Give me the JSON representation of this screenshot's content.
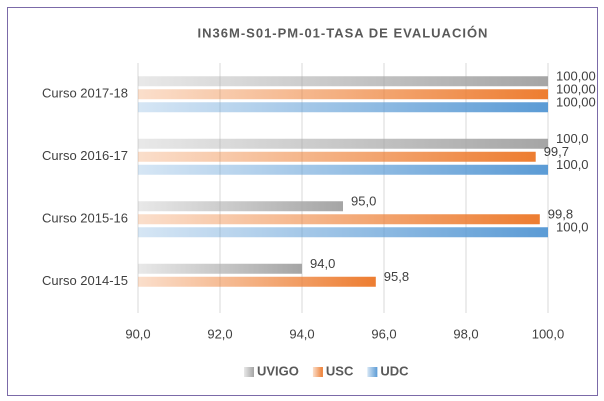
{
  "chart_data": {
    "type": "hbar",
    "title": "IN36M-S01-PM-01-TASA DE EVALUACIÓN",
    "categories": [
      "Curso 2014-15",
      "Curso 2015-16",
      "Curso 2016-17",
      "Curso 2017-18"
    ],
    "series": [
      {
        "name": "UVIGO",
        "color": "#a5a5a5",
        "values": [
          94.0,
          95.0,
          100.0,
          100.0
        ],
        "value_labels": [
          "94,0",
          "95,0",
          "100,0",
          "100,00"
        ]
      },
      {
        "name": "USC",
        "color": "#ed7d31",
        "values": [
          95.8,
          99.8,
          99.7,
          100.0
        ],
        "value_labels": [
          "95,8",
          "99,8",
          "99,7",
          "100,00"
        ]
      },
      {
        "name": "UDC",
        "color": "#5b9bd5",
        "values": [
          null,
          100.0,
          100.0,
          100.0
        ],
        "value_labels": [
          null,
          "100,0",
          "100,0",
          "100,00"
        ]
      }
    ],
    "xlim": [
      90,
      100
    ],
    "xticks": [
      {
        "value": 90,
        "label": "90,0"
      },
      {
        "value": 92,
        "label": "92,0"
      },
      {
        "value": 94,
        "label": "94,0"
      },
      {
        "value": 96,
        "label": "96,0"
      },
      {
        "value": 98,
        "label": "98,0"
      },
      {
        "value": 100,
        "label": "100,0"
      }
    ],
    "grid": true,
    "legend": "bottom"
  }
}
